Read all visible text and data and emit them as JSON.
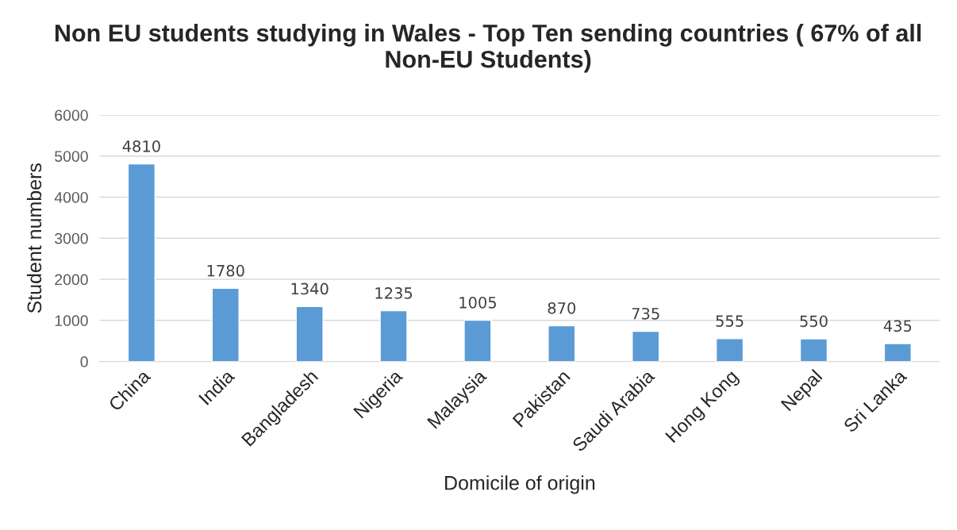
{
  "chart_data": {
    "type": "bar",
    "title": "Non EU students studying in Wales - Top Ten sending countries ( 67% of all Non-EU Students)",
    "xlabel": "Domicile of origin",
    "ylabel": "Student numbers",
    "categories": [
      "China",
      "India",
      "Bangladesh",
      "Nigeria",
      "Malaysia",
      "Pakistan",
      "Saudi Arabia",
      "Hong Kong",
      "Nepal",
      "Sri Lanka"
    ],
    "values": [
      4810,
      1780,
      1340,
      1235,
      1005,
      870,
      735,
      555,
      550,
      435
    ],
    "color": "#5b9bd5",
    "ylim": [
      0,
      6000
    ],
    "yticks": [
      0,
      1000,
      2000,
      3000,
      4000,
      5000,
      6000
    ],
    "grid": "y",
    "data_labels": true
  }
}
